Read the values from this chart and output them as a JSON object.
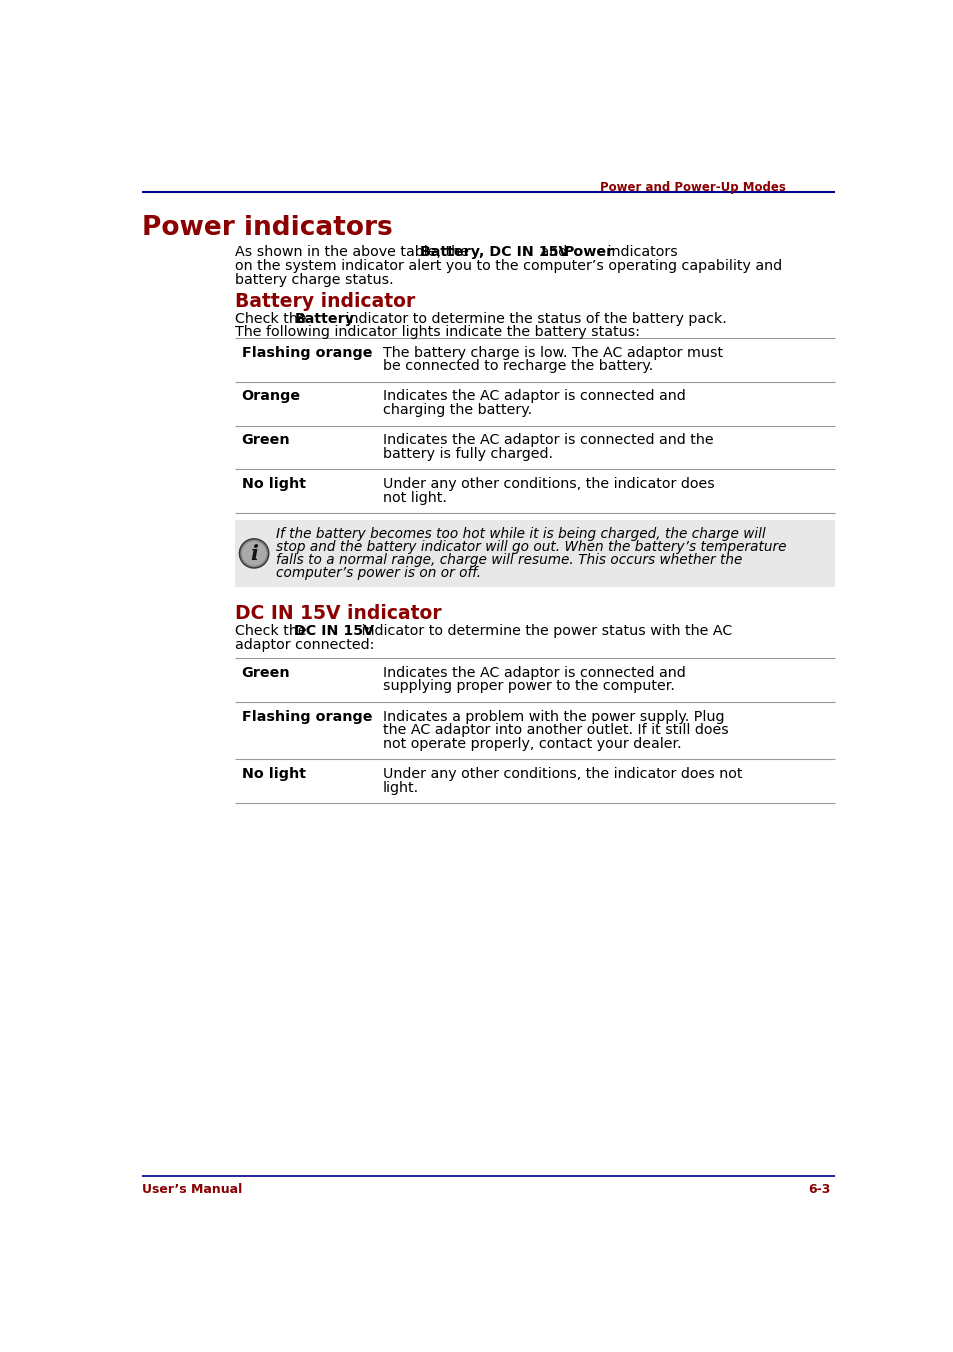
{
  "page_header_text": "Power and Power-Up Modes",
  "header_line_color": "#00008B",
  "header_text_color": "#8B0000",
  "main_title": "Power indicators",
  "main_title_color": "#8B0000",
  "section1_title": "Battery indicator",
  "section1_title_color": "#8B0000",
  "section2_title": "DC IN 15V indicator",
  "section2_title_color": "#8B0000",
  "battery_table": [
    {
      "col1": "Flashing orange",
      "col2": "The battery charge is low. The AC adaptor must\nbe connected to recharge the battery."
    },
    {
      "col1": "Orange",
      "col2": "Indicates the AC adaptor is connected and\ncharging the battery."
    },
    {
      "col1": "Green",
      "col2": "Indicates the AC adaptor is connected and the\nbattery is fully charged."
    },
    {
      "col1": "No light",
      "col2": "Under any other conditions, the indicator does\nnot light."
    }
  ],
  "note_text": "If the battery becomes too hot while it is being charged, the charge will\nstop and the battery indicator will go out. When the battery’s temperature\nfalls to a normal range, charge will resume. This occurs whether the\ncomputer’s power is on or off.",
  "note_bg": "#E8E8E8",
  "dc_table": [
    {
      "col1": "Green",
      "col2": "Indicates the AC adaptor is connected and\nsupplying proper power to the computer."
    },
    {
      "col1": "Flashing orange",
      "col2": "Indicates a problem with the power supply. Plug\nthe AC adaptor into another outlet. If it still does\nnot operate properly, contact your dealer."
    },
    {
      "col1": "No light",
      "col2": "Under any other conditions, the indicator does not\nlight."
    }
  ],
  "footer_left": "User’s Manual",
  "footer_right": "6-3",
  "footer_color": "#8B0000",
  "footer_line_color": "#00008B",
  "bg_color": "#FFFFFF",
  "text_color": "#000000",
  "table_line_color": "#999999"
}
